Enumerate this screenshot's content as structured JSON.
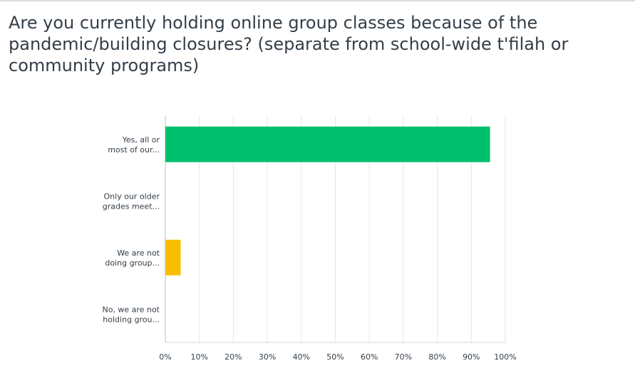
{
  "question": {
    "title": "Are you currently holding online group classes because of the pandemic/building closures? (separate from school-wide t'filah or community programs)"
  },
  "chart_data": {
    "type": "bar",
    "orientation": "horizontal",
    "categories": [
      [
        "Yes, all or",
        "most of our..."
      ],
      [
        "Only our older",
        "grades meet..."
      ],
      [
        "We are not",
        "doing group..."
      ],
      [
        "No, we are not",
        "holding grou..."
      ]
    ],
    "values": [
      95.5,
      0,
      4.5,
      0
    ],
    "colors": [
      "#00bf6f",
      "#f4a22a",
      "#f9be00",
      "#a8b0b7"
    ],
    "xticks": [
      "0%",
      "10%",
      "20%",
      "30%",
      "40%",
      "50%",
      "60%",
      "70%",
      "80%",
      "90%",
      "100%"
    ],
    "xlim": [
      0,
      100
    ],
    "grid": true,
    "title": "Are you currently holding online group classes because of the pandemic/building closures? (separate from school-wide t'filah or community programs)",
    "xlabel": "",
    "ylabel": ""
  }
}
